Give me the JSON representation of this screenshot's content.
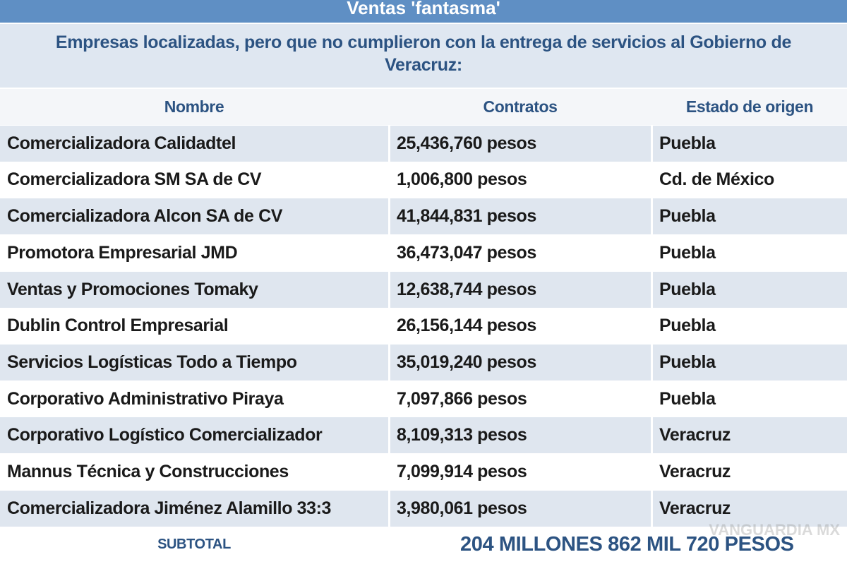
{
  "header": {
    "title": "Ventas 'fantasma'",
    "subtitle": "Empresas localizadas, pero que no cumplieron con la entrega de servicios al Gobierno de Veracruz:"
  },
  "table": {
    "columns": [
      "Nombre",
      "Contratos",
      "Estado de origen"
    ],
    "rows": [
      [
        "Comercializadora Calidadtel",
        "25,436,760 pesos",
        "Puebla"
      ],
      [
        "Comercializadora SM SA de CV",
        "1,006,800 pesos",
        "Cd. de México"
      ],
      [
        "Comercializadora Alcon SA de CV",
        "41,844,831 pesos",
        "Puebla"
      ],
      [
        "Promotora Empresarial JMD",
        "36,473,047 pesos",
        "Puebla"
      ],
      [
        "Ventas y Promociones Tomaky",
        "12,638,744 pesos",
        "Puebla"
      ],
      [
        "Dublin Control Empresarial",
        "26,156,144 pesos",
        "Puebla"
      ],
      [
        "Servicios Logísticas Todo a Tiempo",
        "35,019,240 pesos",
        "Puebla"
      ],
      [
        "Corporativo Administrativo Piraya",
        "7,097,866 pesos",
        "Puebla"
      ],
      [
        "Corporativo Logístico Comercializador",
        "8,109,313 pesos",
        "Veracruz"
      ],
      [
        "Mannus Técnica y Construcciones",
        "7,099,914 pesos",
        "Veracruz"
      ],
      [
        "Comercializadora Jiménez Alamillo 33:3",
        "3,980,061 pesos",
        "Veracruz"
      ]
    ],
    "subtotal": {
      "label": "SUBTOTAL",
      "value": "204 MILLONES 862 MIL 720 PESOS"
    }
  },
  "watermark": "VANGUARDIA MX"
}
